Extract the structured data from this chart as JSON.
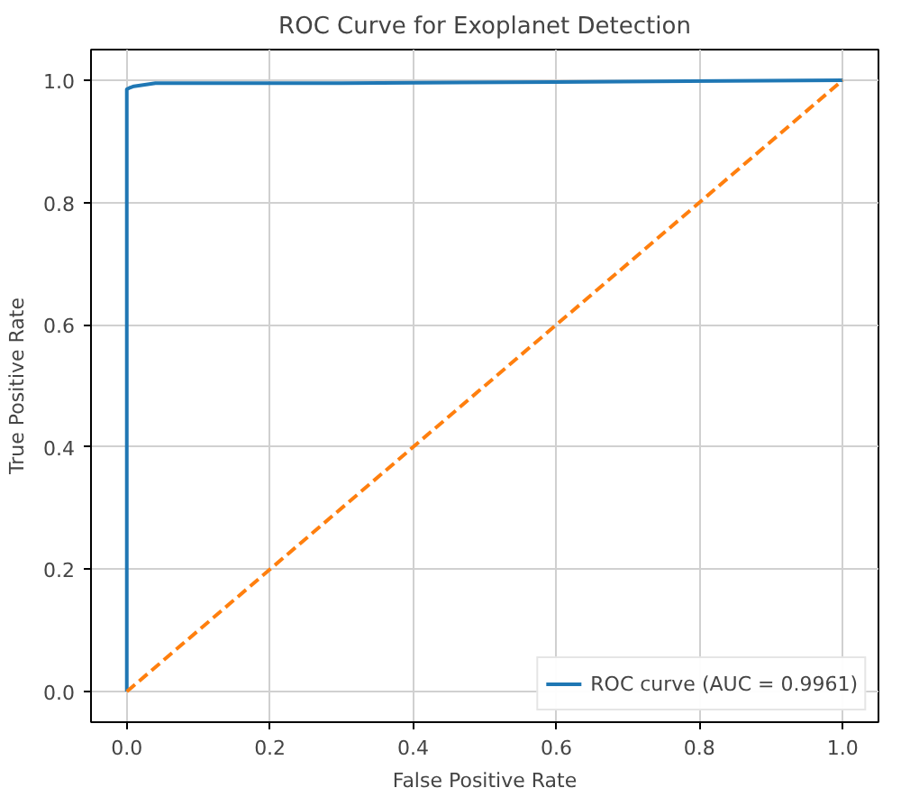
{
  "chart_data": {
    "type": "line",
    "title": "ROC Curve for Exoplanet Detection",
    "xlabel": "False Positive Rate",
    "ylabel": "True Positive Rate",
    "series": [
      {
        "name": "ROC curve (AUC = 0.9961)",
        "color": "#1f77b4",
        "x": [
          0,
          0,
          0.005,
          0.01,
          0.04,
          0.3,
          0.6,
          1
        ],
        "values": [
          0,
          0.985,
          0.988,
          0.99,
          0.995,
          0.995,
          0.997,
          1
        ],
        "line_style": "solid"
      },
      {
        "color": "#ff7f0e",
        "x": [
          0,
          1
        ],
        "values": [
          0,
          1
        ],
        "line_style": "dashed"
      }
    ],
    "xlim": [
      -0.05,
      1.05
    ],
    "ylim": [
      -0.05,
      1.05
    ],
    "xticks": [
      {
        "value": 0,
        "label": "0.0"
      },
      0.2,
      0.4,
      0.6,
      0.8,
      {
        "value": 1,
        "label": "1.0"
      }
    ],
    "yticks": [
      {
        "value": 0,
        "label": "0.0"
      },
      0.2,
      0.4,
      0.6,
      0.8,
      {
        "value": 1,
        "label": "1.0"
      }
    ],
    "grid": true,
    "legend": "bottom right"
  }
}
